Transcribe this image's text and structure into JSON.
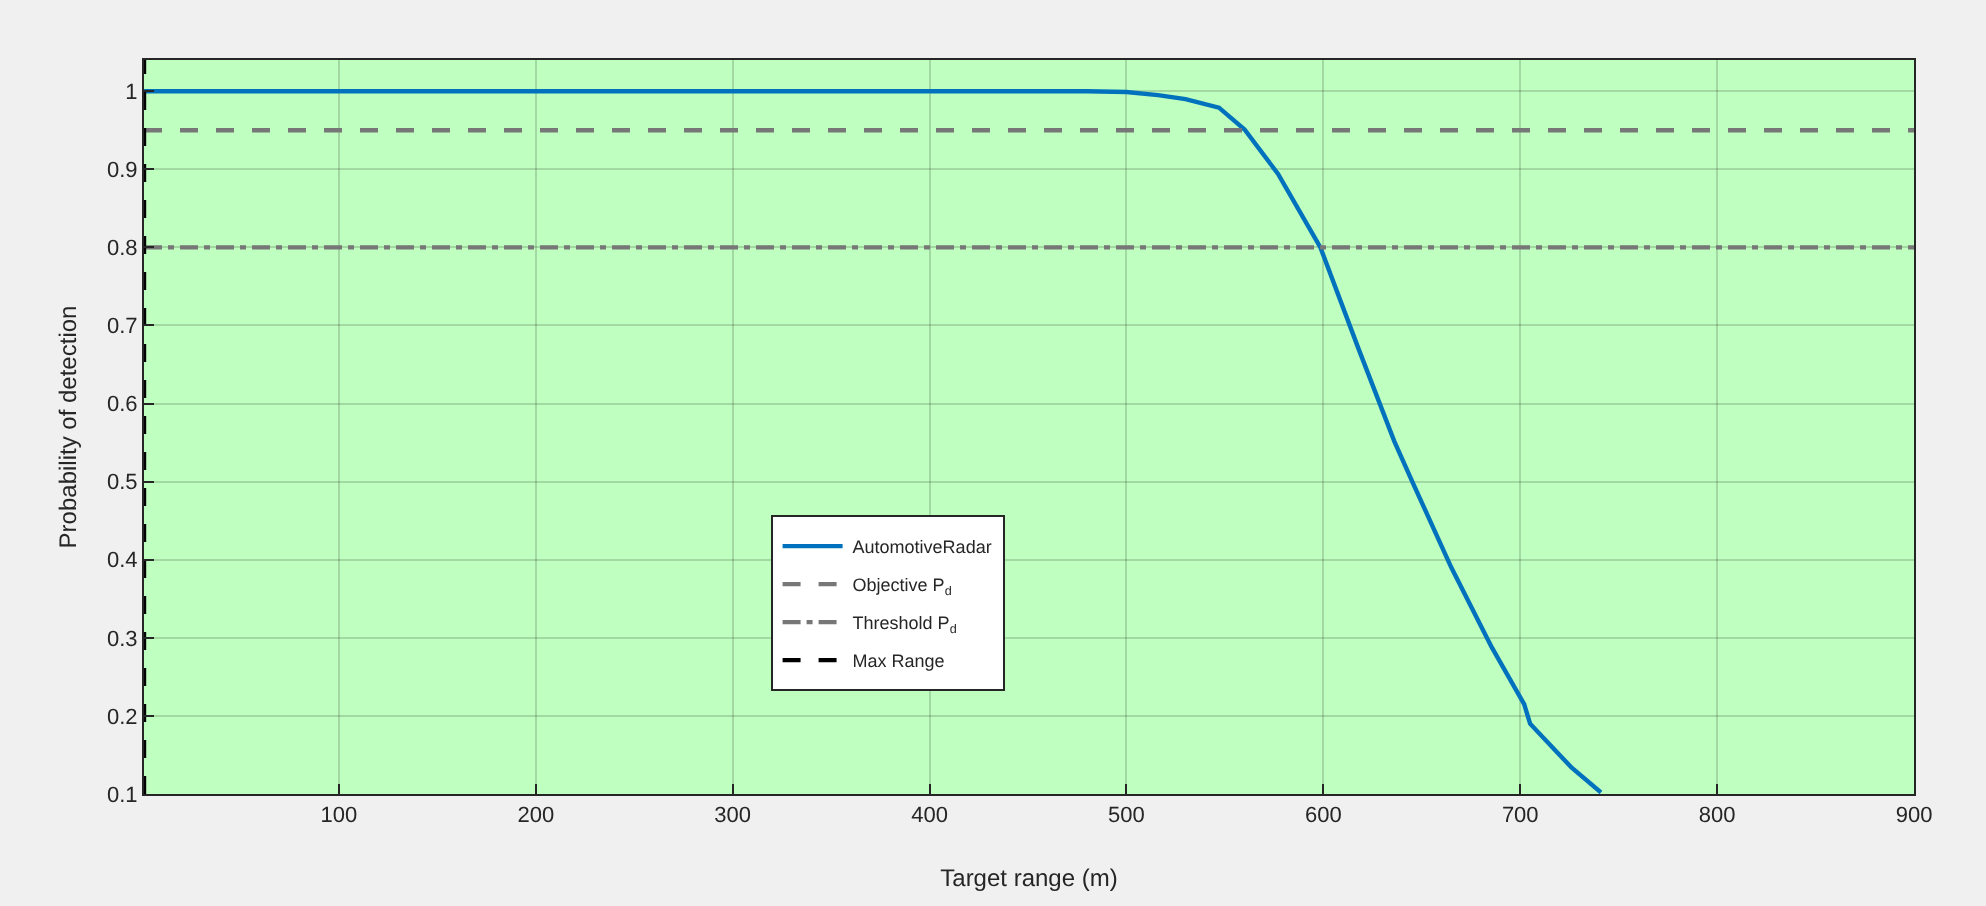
{
  "chart_data": {
    "type": "line",
    "xlabel": "Target range (m)",
    "ylabel": "Probability of detection",
    "xlim": [
      1,
      900
    ],
    "xticks": [
      100,
      200,
      300,
      400,
      500,
      600,
      700,
      800,
      900
    ],
    "ylim": [
      0.1,
      1.04
    ],
    "yticks": [
      0.1,
      0.2,
      0.3,
      0.4,
      0.5,
      0.6,
      0.7,
      0.8,
      0.9,
      1
    ],
    "series": [
      {
        "name": "AutomotiveRadar",
        "color": "#0072bd",
        "x": [
          1,
          100,
          200,
          300,
          400,
          480,
          500,
          516,
          530,
          547,
          560,
          577,
          598.5,
          617.6,
          636,
          645,
          665,
          685.5,
          702,
          705,
          726,
          741
        ],
        "values": [
          1,
          1,
          1,
          1,
          1,
          1,
          0.999,
          0.995,
          0.99,
          0.979,
          0.951,
          0.894,
          0.8,
          0.672,
          0.552,
          0.501,
          0.39,
          0.288,
          0.215,
          0.19,
          0.134,
          0.102
        ]
      }
    ],
    "ref_lines": [
      {
        "axis": "y",
        "value": 0.95,
        "label": "Objective P$_{d}$",
        "color": "#777777",
        "line_style": "dashed"
      },
      {
        "axis": "y",
        "value": 0.8,
        "label": "Threshold P$_{d}$",
        "color": "#777777",
        "line_style": "dashdot"
      },
      {
        "axis": "x",
        "value": 1,
        "label": "Max Range",
        "color": "#000000",
        "line_style": "dashed"
      }
    ],
    "bands": [
      {
        "axis": "x",
        "from": 1,
        "to": 900,
        "color": "#bfffbf"
      }
    ],
    "grid": true,
    "legend": "left",
    "line_style": "solid",
    "marker": "none"
  }
}
